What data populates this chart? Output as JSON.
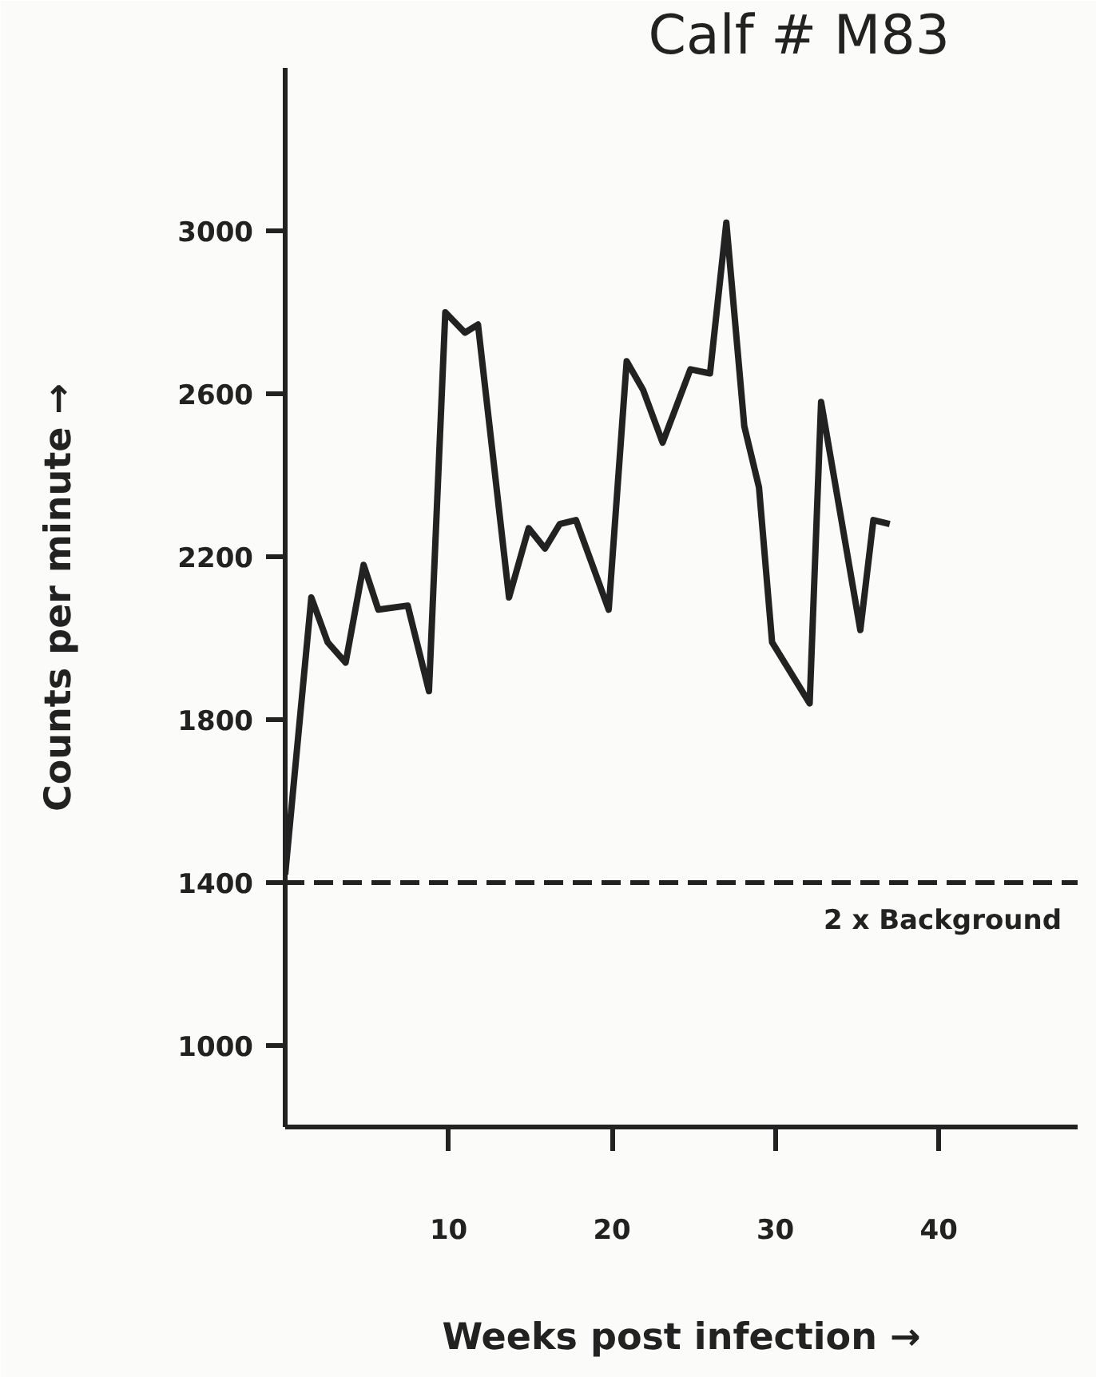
{
  "chart_data": {
    "type": "line",
    "title": "Calf # M83",
    "xlabel": "Weeks post infection →",
    "ylabel": "Counts per minute →",
    "x": [
      0,
      1.6,
      2.6,
      3.7,
      4.8,
      5.7,
      7.5,
      8.8,
      9.8,
      11.0,
      11.8,
      13.7,
      14.9,
      15.9,
      16.8,
      17.8,
      19.8,
      20.9,
      21.9,
      23.1,
      24.8,
      26.0,
      27.0,
      28.1,
      29.0,
      29.8,
      32.1,
      32.8,
      35.2,
      36.0,
      37.0
    ],
    "series": [
      {
        "color": "#222222",
        "values": [
          1420,
          2100,
          1990,
          1940,
          2180,
          2070,
          2080,
          1870,
          2800,
          2750,
          2770,
          2100,
          2270,
          2220,
          2280,
          2290,
          2070,
          2680,
          2610,
          2480,
          2660,
          2650,
          3020,
          2520,
          2370,
          1990,
          1840,
          2580,
          2020,
          2290,
          2280
        ]
      }
    ],
    "xlim": [
      0,
      48.5
    ],
    "ylim": [
      800,
      3400
    ],
    "xticks": [
      10,
      20,
      30,
      40
    ],
    "yticks": [
      1000,
      1400,
      1800,
      2200,
      2600,
      3000
    ],
    "grid": false,
    "marker": "none",
    "line_style": "solid",
    "ref_lines": [
      {
        "axis": "y",
        "value": 1400,
        "label": "2 x Background",
        "color": "#222222",
        "line_style": "dashed"
      }
    ]
  }
}
